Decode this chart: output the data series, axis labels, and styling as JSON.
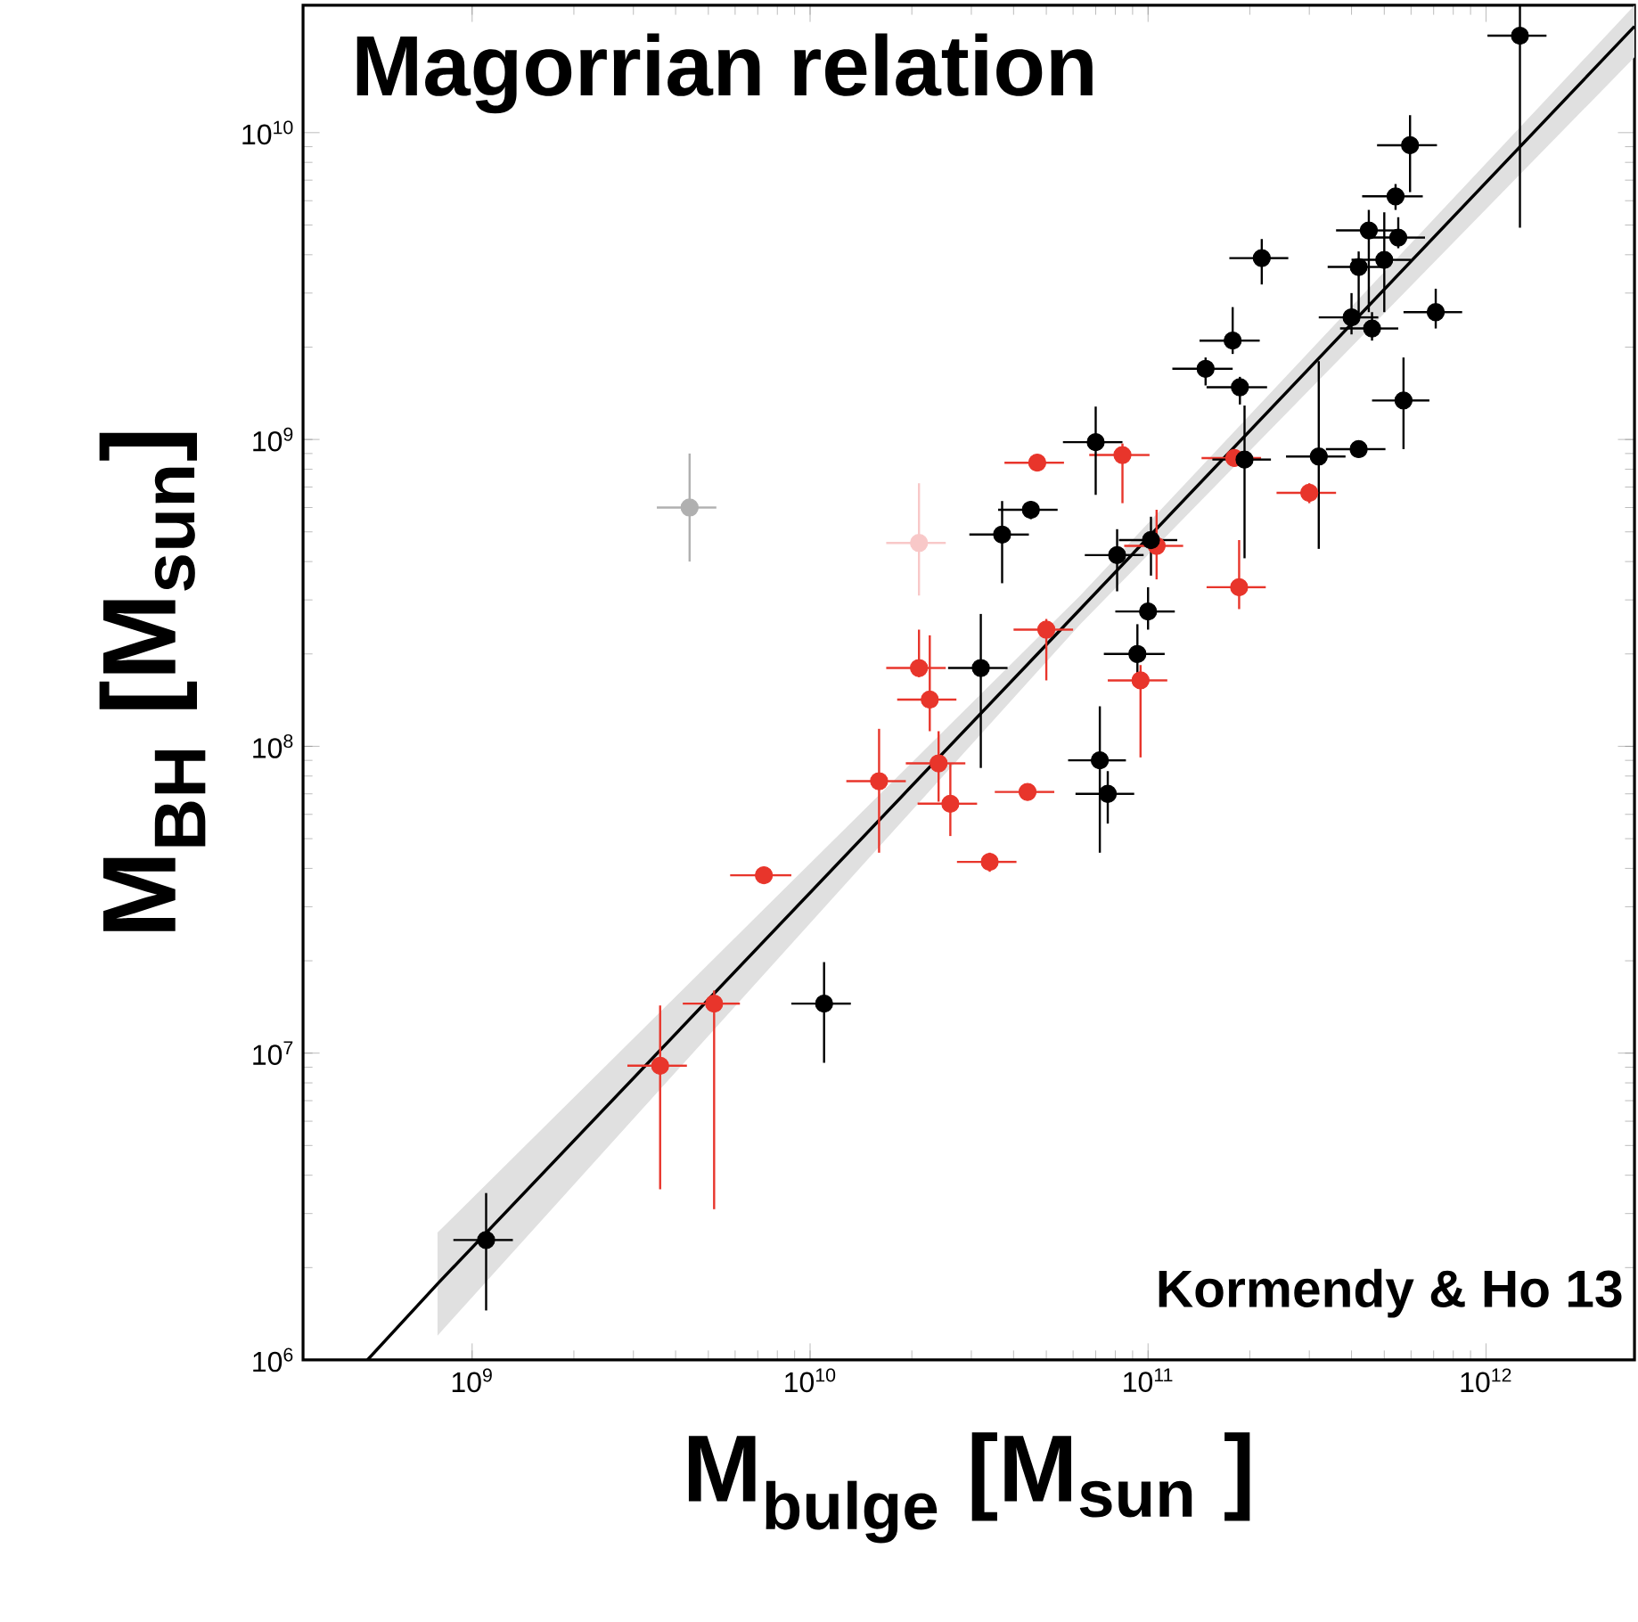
{
  "chart_data": {
    "type": "scatter",
    "title": "Magorrian relation",
    "xlabel": "M$_{bulge}$ [M$_{sun}$ ]",
    "ylabel": "M$_{BH}$   [M$_{sun}$]",
    "annotations": [
      "Kormendy & Ho 13"
    ],
    "log": "xy",
    "grid": false,
    "xlim": [
      316000000.0,
      2750000000000.0
    ],
    "ylim": [
      1000000.0,
      26000000000.0
    ],
    "xticks": [
      {
        "value": 1000000000.0,
        "label": "10$^{9}$"
      },
      {
        "value": 10000000000.0,
        "label": "10$^{10}$"
      },
      {
        "value": 100000000000.0,
        "label": "10$^{11}$"
      },
      {
        "value": 1000000000000.0,
        "label": "10$^{12}$"
      }
    ],
    "yticks": [
      {
        "value": 1000000.0,
        "label": "10$^{6}$"
      },
      {
        "value": 10000000.0,
        "label": "10$^{7}$"
      },
      {
        "value": 100000000.0,
        "label": "10$^{8}$"
      },
      {
        "value": 1000000000.0,
        "label": "10$^{9}$"
      },
      {
        "value": 10000000000.0,
        "label": "10$^{10}$"
      }
    ],
    "series": [
      {
        "type": "line",
        "marker": "none",
        "color": "#000000",
        "x": [
          490000000.0,
          790000000.0,
          63000000000.0,
          2750000000000.0
        ],
        "values": [
          1000000.0,
          1770000.0,
          280000000.0,
          22200000000.0
        ],
        "lower": [
          null,
          1200000.0,
          250000000.0,
          17600000000.0
        ],
        "upper": [
          null,
          2600000.0,
          310000000.0,
          26000000000.0
        ]
      },
      {
        "marker": "circle",
        "color": "#b0b0b0",
        "x": [
          4400000000.0
        ],
        "values": [
          600000000.0
        ],
        "errors": [
          [
            400000000.0,
            900000000.0
          ]
        ],
        "xerrors": [
          880000000.0
        ]
      },
      {
        "marker": "circle",
        "color": "#f8c8c8",
        "x": [
          21000000000.0
        ],
        "values": [
          460000000.0
        ],
        "errors": [
          [
            310000000.0,
            720000000.0
          ]
        ],
        "xerrors": [
          4200000000.0
        ]
      },
      {
        "marker": "circle",
        "color": "#e8352b",
        "x": [
          84000000000.0,
          180000000000.0,
          300000000000.0,
          47000000000.0,
          106000000000.0,
          186000000000.0,
          95000000000.0,
          50000000000.0,
          21000000000.0,
          22600000000.0,
          24000000000.0,
          16000000000.0,
          26000000000.0,
          44000000000.0,
          34000000000.0,
          7300000000.0,
          5200000000.0,
          3600000000.0
        ],
        "values": [
          890000000.0,
          870000000.0,
          670000000.0,
          840000000.0,
          450000000.0,
          330000000.0,
          164000000.0,
          240000000.0,
          180000000.0,
          142000000.0,
          88000000.0,
          77000000.0,
          65000000.0,
          71000000.0,
          42000000.0,
          38000000.0,
          14500000.0,
          9100000.0
        ],
        "errors": [
          [
            620000000.0,
            970000000.0
          ],
          [
            820000000.0,
            930000000.0
          ],
          [
            620000000.0,
            720000000.0
          ],
          [
            800000000.0,
            890000000.0
          ],
          [
            350000000.0,
            590000000.0
          ],
          [
            280000000.0,
            470000000.0
          ],
          [
            92000000.0,
            184000000.0
          ],
          [
            164000000.0,
            260000000.0
          ],
          [
            168000000.0,
            240000000.0
          ],
          [
            112000000.0,
            230000000.0
          ],
          [
            66000000.0,
            112000000.0
          ],
          [
            45000000.0,
            114000000.0
          ],
          [
            51000000.0,
            88000000.0
          ],
          [
            68000000.0,
            74000000.0
          ],
          [
            39000000.0,
            45000000.0
          ],
          [
            36000000.0,
            40000000.0
          ],
          [
            3100000.0,
            16000000.0
          ],
          [
            3600000.0,
            14300000.0
          ]
        ],
        "xerrors": [
          17000000000.0,
          36000000000.0,
          60000000000.0,
          9400000000.0,
          21000000000.0,
          37000000000.0,
          19000000000.0,
          10000000000.0,
          4200000000.0,
          4500000000.0,
          4800000000.0,
          3200000000.0,
          5200000000.0,
          8800000000.0,
          6800000000.0,
          1500000000.0,
          1000000000.0,
          720000000.0
        ]
      },
      {
        "marker": "circle",
        "color": "#000000",
        "x": [
          1260000000000.0,
          596000000000.0,
          540000000000.0,
          450000000000.0,
          550000000000.0,
          420000000000.0,
          500000000000.0,
          217000000000.0,
          710000000000.0,
          400000000000.0,
          460000000000.0,
          178000000000.0,
          148000000000.0,
          187000000000.0,
          570000000000.0,
          70000000000.0,
          193000000000.0,
          320000000000.0,
          420000000000.0,
          45000000000.0,
          37000000000.0,
          81000000000.0,
          102000000000.0,
          100000000000.0,
          93000000000.0,
          32000000000.0,
          72000000000.0,
          76000000000.0,
          11000000000.0,
          1100000000.0
        ],
        "values": [
          20700000000.0,
          9100000000.0,
          6200000000.0,
          4800000000.0,
          4550000000.0,
          3650000000.0,
          3850000000.0,
          3900000000.0,
          2600000000.0,
          2500000000.0,
          2300000000.0,
          2100000000.0,
          1700000000.0,
          1480000000.0,
          1340000000.0,
          980000000.0,
          860000000.0,
          880000000.0,
          930000000.0,
          590000000.0,
          490000000.0,
          420000000.0,
          470000000.0,
          275000000.0,
          200000000.0,
          180000000.0,
          90000000.0,
          70000000.0,
          14500000.0,
          2460000.0
        ],
        "errors": [
          [
            4900000000.0,
            26000000000.0
          ],
          [
            6400000000.0,
            11400000000.0
          ],
          [
            5600000000.0,
            6800000000.0
          ],
          [
            2600000000.0,
            5600000000.0
          ],
          [
            4200000000.0,
            5300000000.0
          ],
          [
            2500000000.0,
            4100000000.0
          ],
          [
            2600000000.0,
            5500000000.0
          ],
          [
            3200000000.0,
            4500000000.0
          ],
          [
            2300000000.0,
            3100000000.0
          ],
          [
            2200000000.0,
            3000000000.0
          ],
          [
            2100000000.0,
            2600000000.0
          ],
          [
            1900000000.0,
            2700000000.0
          ],
          [
            1500000000.0,
            1850000000.0
          ],
          [
            1300000000.0,
            1600000000.0
          ],
          [
            930000000.0,
            1850000000.0
          ],
          [
            660000000.0,
            1280000000.0
          ],
          [
            410000000.0,
            1290000000.0
          ],
          [
            440000000.0,
            1800000000.0
          ],
          [
            880000000.0,
            980000000.0
          ],
          [
            550000000.0,
            630000000.0
          ],
          [
            340000000.0,
            630000000.0
          ],
          [
            320000000.0,
            510000000.0
          ],
          [
            360000000.0,
            560000000.0
          ],
          [
            240000000.0,
            330000000.0
          ],
          [
            170000000.0,
            250000000.0
          ],
          [
            85000000.0,
            270000000.0
          ],
          [
            45000000.0,
            135000000.0
          ],
          [
            56000000.0,
            83000000.0
          ],
          [
            9300000.0,
            19800000.0
          ],
          [
            1450000.0,
            3500000.0
          ]
        ],
        "xerrors": [
          250000000000.0,
          120000000000.0,
          110000000000.0,
          90000000000.0,
          110000000000.0,
          80000000000.0,
          100000000000.0,
          43000000000.0,
          140000000000.0,
          80000000000.0,
          90000000000.0,
          36000000000.0,
          30000000000.0,
          38000000000.0,
          110000000000.0,
          14000000000.0,
          38000000000.0,
          64000000000.0,
          84000000000.0,
          9000000000.0,
          7400000000.0,
          16000000000.0,
          20000000000.0,
          20000000000.0,
          19000000000.0,
          6400000000.0,
          14000000000.0,
          15000000000.0,
          2200000000.0,
          220000000.0
        ]
      }
    ]
  }
}
